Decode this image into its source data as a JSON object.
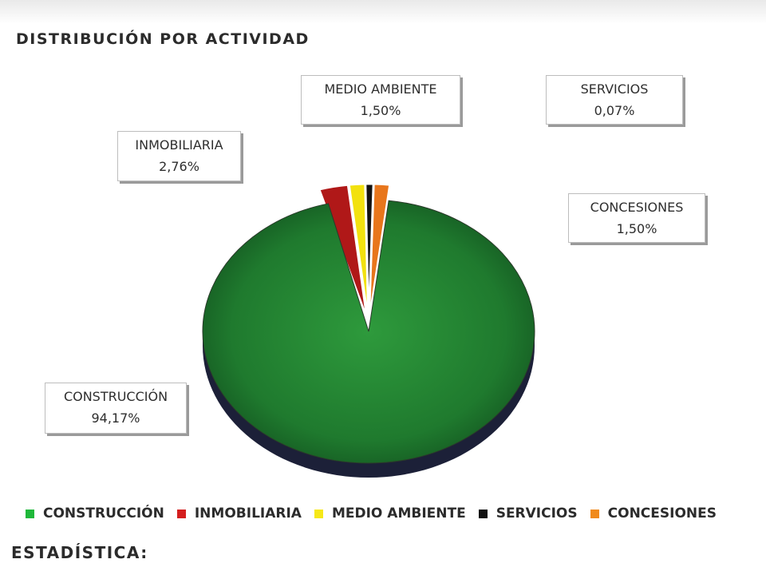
{
  "header": {
    "title": "DISTRIBUCIÓN POR ACTIVIDAD"
  },
  "chart_data": {
    "type": "pie",
    "title": "DISTRIBUCIÓN POR ACTIVIDAD",
    "unit": "%",
    "legend_position": "bottom",
    "categories": [
      "CONSTRUCCIÓN",
      "INMOBILIARIA",
      "MEDIO AMBIENTE",
      "SERVICIOS",
      "CONCESIONES"
    ],
    "values": [
      94.17,
      2.76,
      1.5,
      0.07,
      1.5
    ],
    "value_labels": [
      "94,17%",
      "2,76%",
      "1,50%",
      "0,07%",
      "1,50%"
    ],
    "colors": [
      "#1f7a2e",
      "#b01818",
      "#f2e10f",
      "#111111",
      "#e8761c"
    ]
  },
  "labels": {
    "construccion": {
      "name": "CONSTRUCCIÓN",
      "value": "94,17%"
    },
    "inmobiliaria": {
      "name": "INMOBILIARIA",
      "value": "2,76%"
    },
    "medio_ambiente": {
      "name": "MEDIO AMBIENTE",
      "value": "1,50%"
    },
    "servicios": {
      "name": "SERVICIOS",
      "value": "0,07%"
    },
    "concesiones": {
      "name": "CONCESIONES",
      "value": "1,50%"
    }
  },
  "legend": [
    {
      "label": "CONSTRUCCIÓN",
      "color": "#1fb83a"
    },
    {
      "label": "INMOBILIARIA",
      "color": "#d41f1f"
    },
    {
      "label": "MEDIO AMBIENTE",
      "color": "#f6e818"
    },
    {
      "label": "SERVICIOS",
      "color": "#111111"
    },
    {
      "label": "CONCESIONES",
      "color": "#f08a1c"
    }
  ],
  "footer": {
    "title": "ESTADÍSTICA:"
  }
}
